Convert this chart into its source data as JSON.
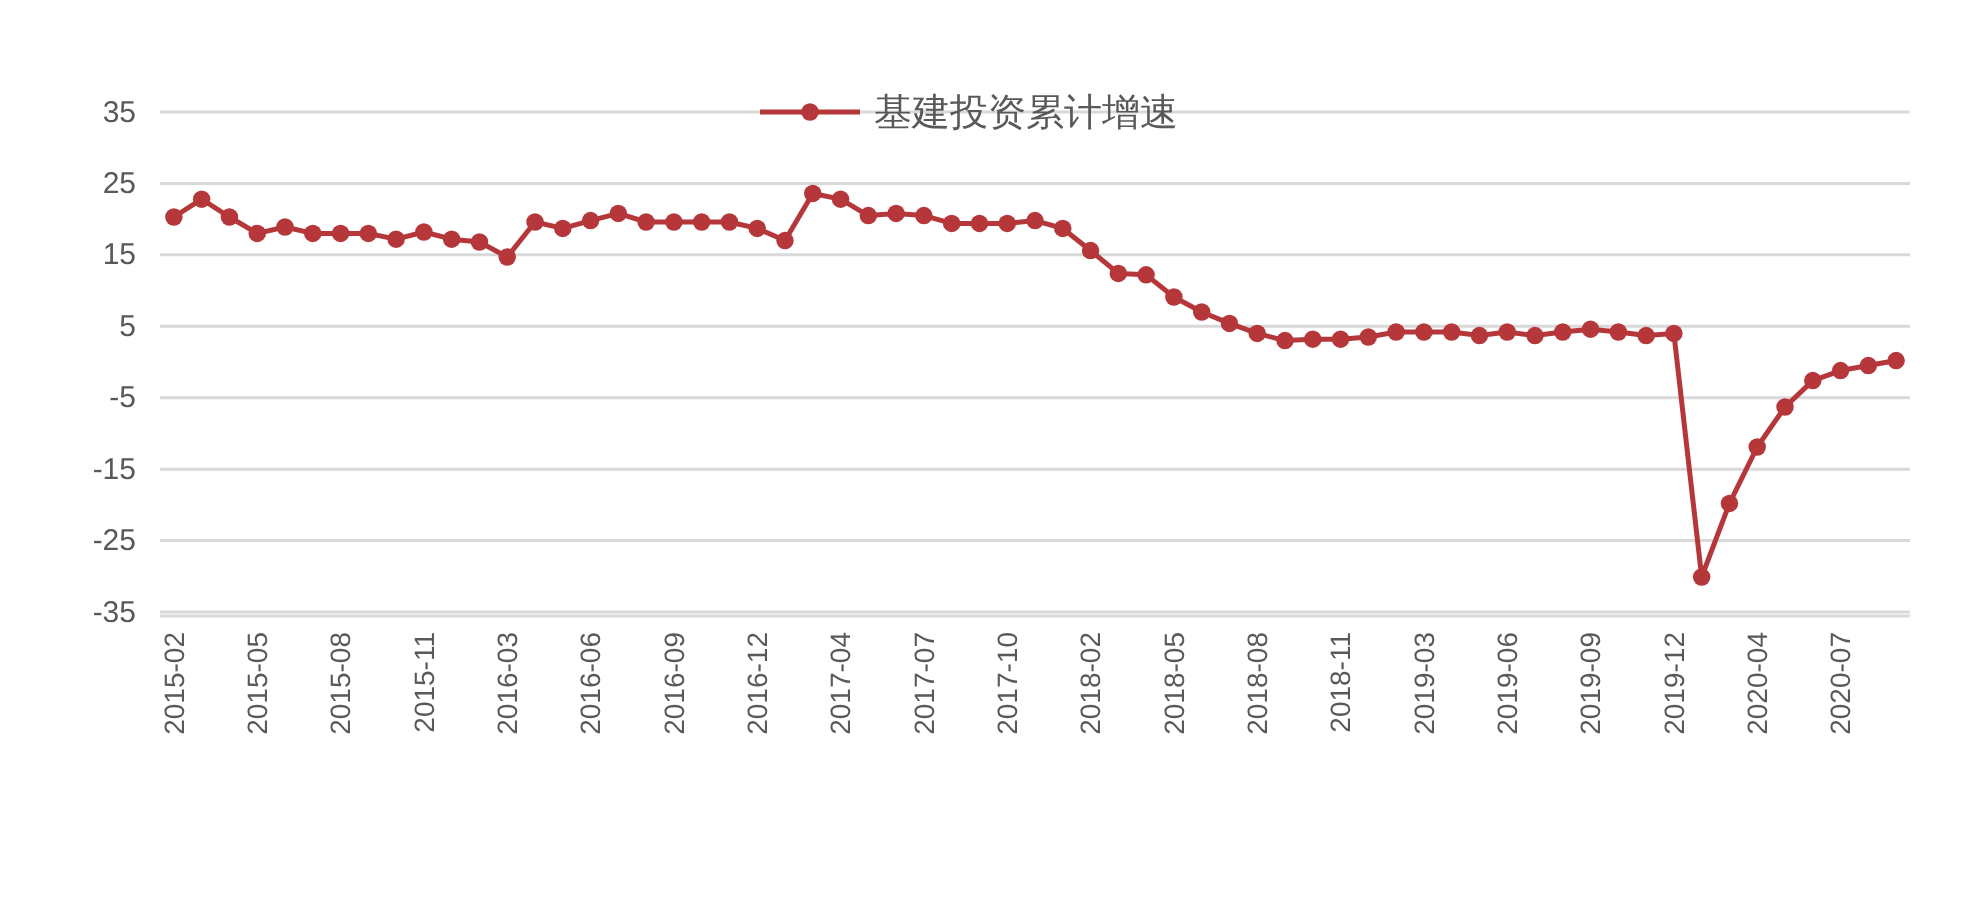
{
  "chart_data": {
    "type": "line",
    "legend": "top",
    "grid": "y",
    "marker": "circle",
    "line_style": "solid",
    "categories": [
      "2015-02",
      null,
      null,
      "2015-05",
      null,
      null,
      "2015-08",
      null,
      null,
      "2015-11",
      null,
      null,
      "2016-03",
      null,
      null,
      "2016-06",
      null,
      null,
      "2016-09",
      null,
      null,
      "2016-12",
      null,
      null,
      "2017-04",
      null,
      null,
      "2017-07",
      null,
      null,
      "2017-10",
      null,
      null,
      "2018-02",
      null,
      null,
      "2018-05",
      null,
      null,
      "2018-08",
      null,
      null,
      "2018-11",
      null,
      null,
      "2019-03",
      null,
      null,
      "2019-06",
      null,
      null,
      "2019-09",
      null,
      null,
      "2019-12",
      null,
      null,
      "2020-04",
      null,
      null,
      "2020-07",
      null,
      null
    ],
    "ylim": [
      -35,
      35
    ],
    "yticks": [
      -35,
      -25,
      -15,
      -5,
      5,
      15,
      25,
      35
    ],
    "series": [
      {
        "name": "基建投资累计增速",
        "color": "#b5373a",
        "values": [
          20.3,
          22.8,
          20.3,
          18.0,
          18.9,
          18.0,
          18.0,
          18.0,
          17.2,
          18.2,
          17.2,
          16.8,
          14.7,
          19.6,
          18.7,
          19.8,
          20.8,
          19.6,
          19.6,
          19.6,
          19.6,
          18.7,
          17.0,
          23.6,
          22.8,
          20.5,
          20.8,
          20.5,
          19.4,
          19.4,
          19.4,
          19.8,
          18.7,
          15.6,
          12.4,
          12.2,
          9.1,
          7.0,
          5.4,
          4.0,
          3.0,
          3.2,
          3.2,
          3.5,
          4.2,
          4.2,
          4.2,
          3.7,
          4.2,
          3.7,
          4.2,
          4.6,
          4.2,
          3.7,
          4.0,
          -30.1,
          -19.8,
          -11.9,
          -6.3,
          -2.6,
          -1.2,
          -0.5,
          0.2
        ]
      }
    ]
  }
}
